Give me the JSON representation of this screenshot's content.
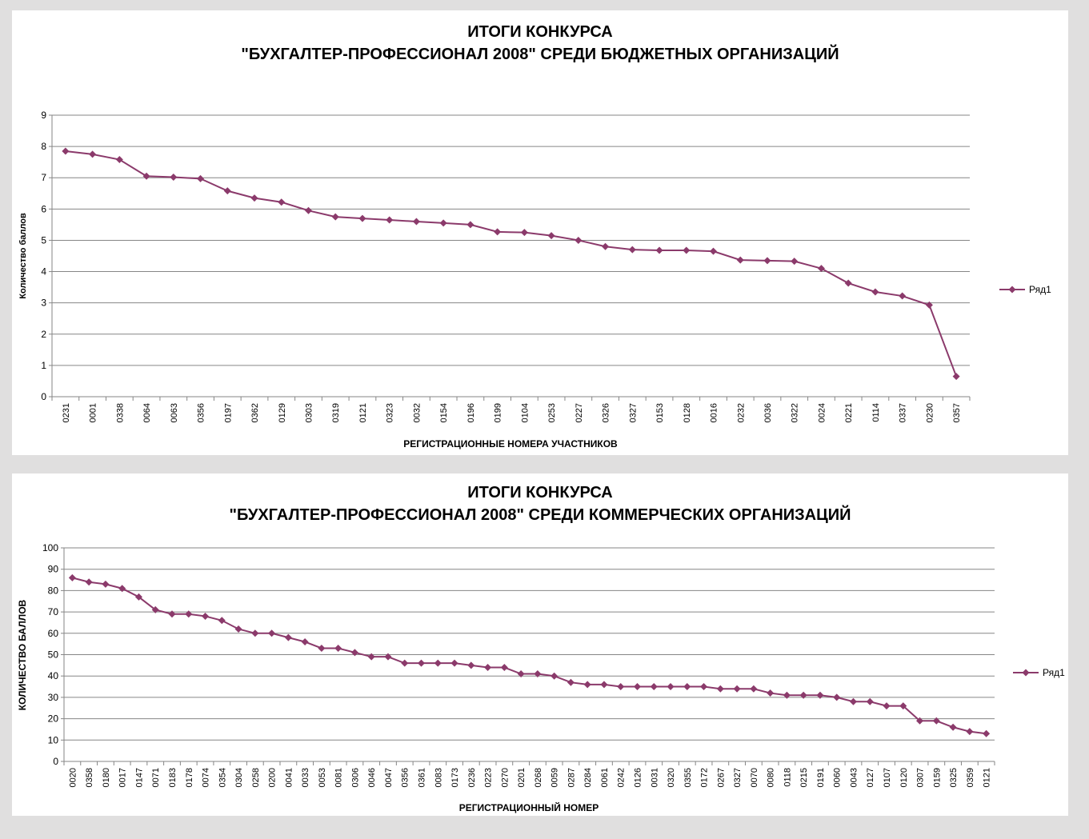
{
  "chart_data": [
    {
      "type": "line",
      "title": [
        "ИТОГИ КОНКУРСА",
        "\"БУХГАЛТЕР-ПРОФЕССИОНАЛ 2008\" СРЕДИ БЮДЖЕТНЫХ ОРГАНИЗАЦИЙ"
      ],
      "xlabel": "РЕГИСТРАЦИОННЫЕ НОМЕРА УЧАСТНИКОВ",
      "ylabel": "Количество баллов",
      "ylim": [
        0,
        9
      ],
      "ytick_step": 1,
      "grid": true,
      "legend_position": "right",
      "marker": "diamond",
      "color": "#8b3a6b",
      "categories": [
        "0231",
        "0001",
        "0338",
        "0064",
        "0063",
        "0356",
        "0197",
        "0362",
        "0129",
        "0303",
        "0319",
        "0121",
        "0323",
        "0032",
        "0154",
        "0196",
        "0199",
        "0104",
        "0253",
        "0227",
        "0326",
        "0327",
        "0153",
        "0128",
        "0016",
        "0232",
        "0036",
        "0322",
        "0024",
        "0221",
        "0114",
        "0337",
        "0230",
        "0357"
      ],
      "series": [
        {
          "name": "Ряд1",
          "values": [
            7.85,
            7.75,
            7.58,
            7.05,
            7.02,
            6.97,
            6.58,
            6.35,
            6.22,
            5.95,
            5.75,
            5.7,
            5.65,
            5.6,
            5.55,
            5.5,
            5.27,
            5.25,
            5.15,
            5.0,
            4.8,
            4.7,
            4.68,
            4.68,
            4.65,
            4.37,
            4.35,
            4.33,
            4.1,
            3.63,
            3.35,
            3.22,
            2.93,
            0.65
          ]
        }
      ]
    },
    {
      "type": "line",
      "title": [
        "ИТОГИ КОНКУРСА",
        "\"БУХГАЛТЕР-ПРОФЕССИОНАЛ 2008\" СРЕДИ КОММЕРЧЕСКИХ ОРГАНИЗАЦИЙ"
      ],
      "xlabel": "РЕГИСТРАЦИОННЫЙ НОМЕР",
      "ylabel": "КОЛИЧЕСТВО БАЛЛОВ",
      "ylim": [
        0,
        100
      ],
      "ytick_step": 10,
      "grid": true,
      "legend_position": "right",
      "marker": "diamond",
      "color": "#8b3a6b",
      "categories": [
        "0020",
        "0358",
        "0180",
        "0017",
        "0147",
        "0071",
        "0183",
        "0178",
        "0074",
        "0354",
        "0304",
        "0258",
        "0200",
        "0041",
        "0033",
        "0053",
        "0081",
        "0306",
        "0046",
        "0047",
        "0356",
        "0361",
        "0083",
        "0173",
        "0236",
        "0223",
        "0270",
        "0201",
        "0268",
        "0059",
        "0287",
        "0284",
        "0061",
        "0242",
        "0126",
        "0031",
        "0320",
        "0355",
        "0172",
        "0267",
        "0327",
        "0070",
        "0080",
        "0118",
        "0215",
        "0191",
        "0060",
        "0043",
        "0127",
        "0107",
        "0120",
        "0307",
        "0159",
        "0325",
        "0359",
        "0121"
      ],
      "series": [
        {
          "name": "Ряд1",
          "values": [
            86,
            84,
            83,
            81,
            77,
            71,
            69,
            69,
            68,
            66,
            62,
            60,
            60,
            58,
            56,
            53,
            53,
            51,
            49,
            49,
            46,
            46,
            46,
            46,
            45,
            44,
            44,
            41,
            41,
            40,
            37,
            36,
            36,
            35,
            35,
            35,
            35,
            35,
            35,
            34,
            34,
            34,
            32,
            31,
            31,
            31,
            30,
            28,
            28,
            26,
            26,
            19,
            19,
            16,
            14,
            13
          ]
        }
      ]
    }
  ]
}
